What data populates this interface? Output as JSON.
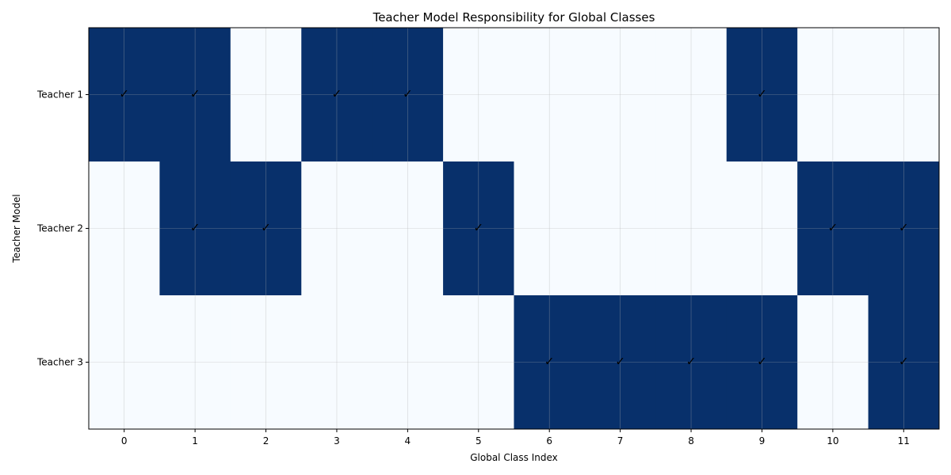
{
  "chart_data": {
    "type": "heatmap",
    "title": "Teacher Model Responsibility for Global Classes",
    "xlabel": "Global Class Index",
    "ylabel": "Teacher Model",
    "x_categories": [
      "0",
      "1",
      "2",
      "3",
      "4",
      "5",
      "6",
      "7",
      "8",
      "9",
      "10",
      "11"
    ],
    "y_categories": [
      "Teacher 1",
      "Teacher 2",
      "Teacher 3"
    ],
    "values": [
      [
        1,
        1,
        0,
        1,
        1,
        0,
        0,
        0,
        0,
        1,
        0,
        0
      ],
      [
        0,
        1,
        1,
        0,
        0,
        1,
        0,
        0,
        0,
        0,
        1,
        1
      ],
      [
        0,
        0,
        0,
        0,
        0,
        0,
        1,
        1,
        1,
        1,
        0,
        1
      ]
    ],
    "cell_marker": "✓",
    "colors": {
      "on": "#08306b",
      "off": "#f7fbff",
      "grid": "#b0b0b0"
    },
    "grid": true
  }
}
